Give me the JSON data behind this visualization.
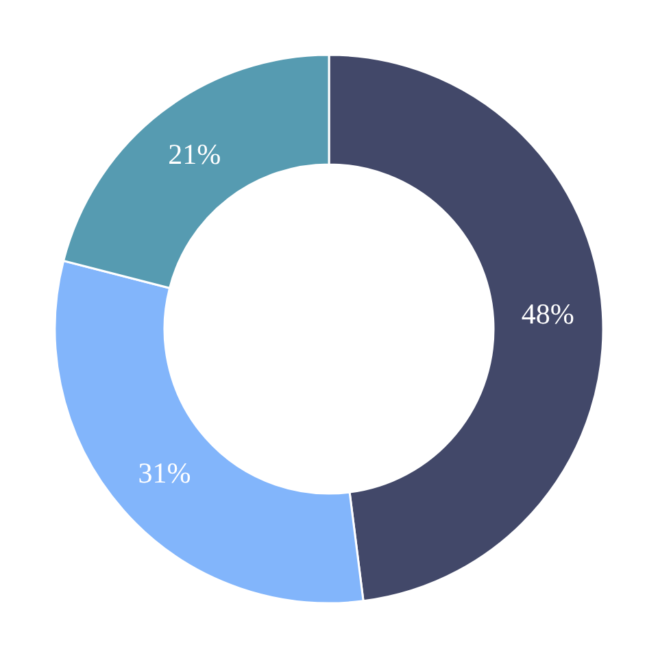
{
  "chart_data": {
    "type": "donut",
    "categories": [
      null,
      null,
      null
    ],
    "values": [
      48,
      31,
      21
    ],
    "colors": [
      "#424869",
      "#82b5fb",
      "#569bb1"
    ],
    "value_labels": [
      "48%",
      "31%",
      "21%"
    ]
  }
}
